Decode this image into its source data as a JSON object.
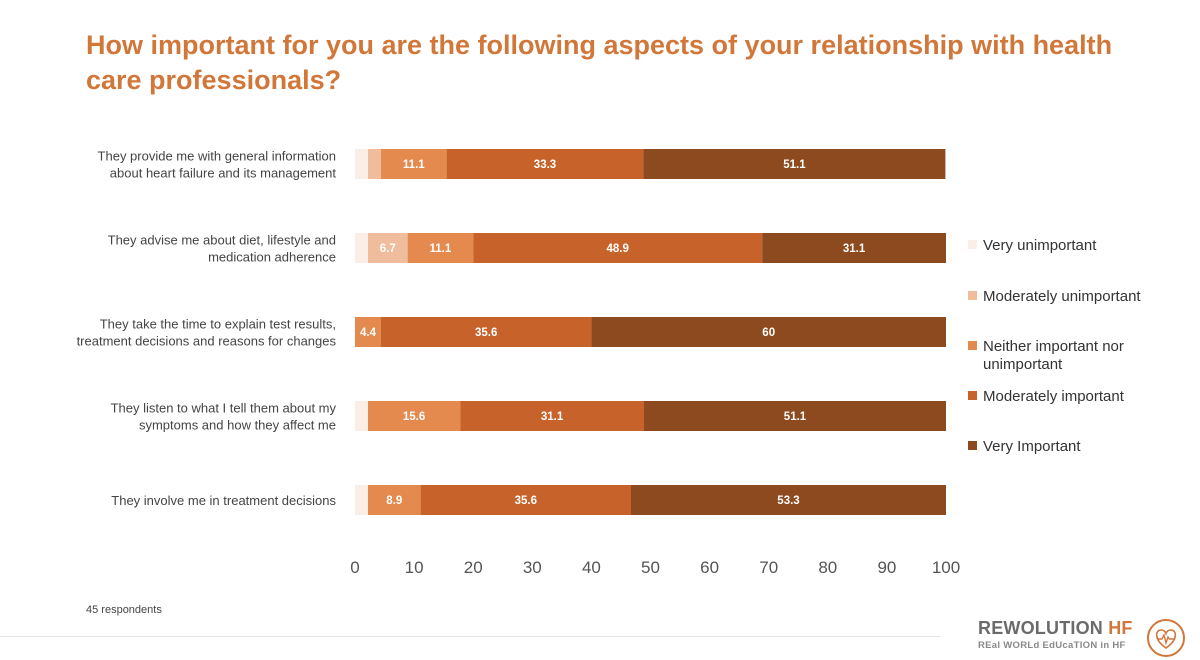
{
  "title": "How important for you are the following aspects of your relationship with health care professionals?",
  "footnote": "45 respondents",
  "brand": {
    "name_prefix": "REWOLUTION",
    "name_suffix": "HF",
    "tagline": "REal WORLd EdUcaTION in HF"
  },
  "icons": {
    "logo": "heart-ecg-icon"
  },
  "colors": {
    "Very unimportant": "#fbeee6",
    "Moderately unimportant": "#efbd9b",
    "Neither important nor unimportant": "#e48a4e",
    "Moderately important": "#c7632a",
    "Very Important": "#8e4a1f",
    "title": "#d2773a"
  },
  "chart_data": {
    "type": "bar",
    "orientation": "horizontal",
    "stacked": true,
    "categories": [
      [
        "They provide me with general information",
        "about heart failure and its management"
      ],
      [
        "They advise me about diet, lifestyle and",
        "medication adherence"
      ],
      [
        "They take the time to explain test results,",
        "treatment decisions and reasons for changes"
      ],
      [
        "They listen to what I tell them about my",
        "symptoms and how they affect me"
      ],
      [
        "They involve me in treatment decisions"
      ]
    ],
    "series": [
      {
        "name": "Very unimportant",
        "values": [
          2.2,
          2.2,
          0,
          2.2,
          2.2
        ]
      },
      {
        "name": "Moderately unimportant",
        "values": [
          2.2,
          6.7,
          0,
          0,
          0
        ]
      },
      {
        "name": "Neither important nor unimportant",
        "values": [
          11.1,
          11.1,
          4.4,
          15.6,
          8.9
        ]
      },
      {
        "name": "Moderately important",
        "values": [
          33.3,
          48.9,
          35.6,
          31.1,
          35.6
        ]
      },
      {
        "name": "Very Important",
        "values": [
          51.1,
          31.1,
          60,
          51.1,
          53.3
        ]
      }
    ],
    "data_labels": [
      [
        null,
        null,
        "11.1",
        "33.3",
        "51.1"
      ],
      [
        null,
        "6.7",
        "11.1",
        "48.9",
        "31.1"
      ],
      [
        null,
        null,
        "4.4",
        "35.6",
        "60"
      ],
      [
        null,
        null,
        "15.6",
        "31.1",
        "51.1"
      ],
      [
        null,
        null,
        "8.9",
        "35.6",
        "53.3"
      ]
    ],
    "legend_labels": [
      [
        "Very unimportant"
      ],
      [
        "Moderately unimportant"
      ],
      [
        "Neither important nor",
        "unimportant"
      ],
      [
        "Moderately important"
      ],
      [
        "Very Important"
      ]
    ],
    "xticks": [
      0,
      10,
      20,
      30,
      40,
      50,
      60,
      70,
      80,
      90,
      100
    ],
    "xlim": [
      0,
      100
    ],
    "grid": false,
    "legend": "right"
  }
}
